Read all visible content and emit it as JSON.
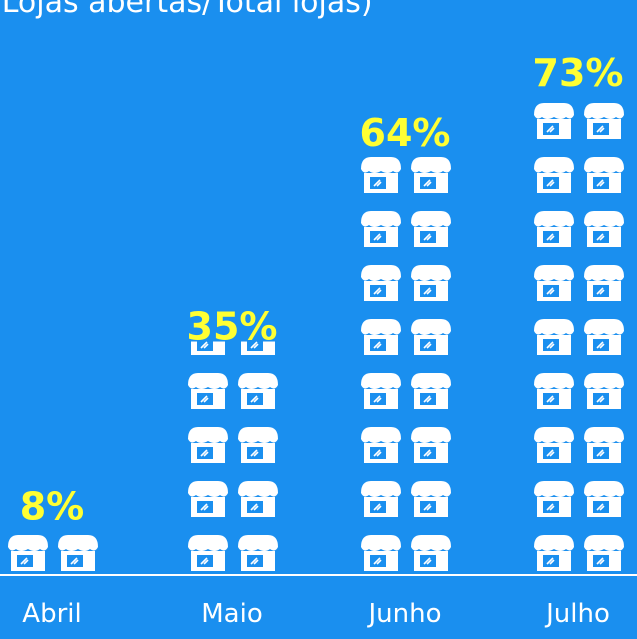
{
  "chart_data": {
    "type": "pictogram",
    "title": "(Lojas abertas/Total lojas)",
    "categories": [
      "Abril",
      "Maio",
      "Junho",
      "Julho"
    ],
    "values": [
      8,
      35,
      64,
      73
    ],
    "value_labels": [
      "8%",
      "35%",
      "64%",
      "73%"
    ],
    "color": "#ffffff",
    "label_color": "#ffff33"
  }
}
